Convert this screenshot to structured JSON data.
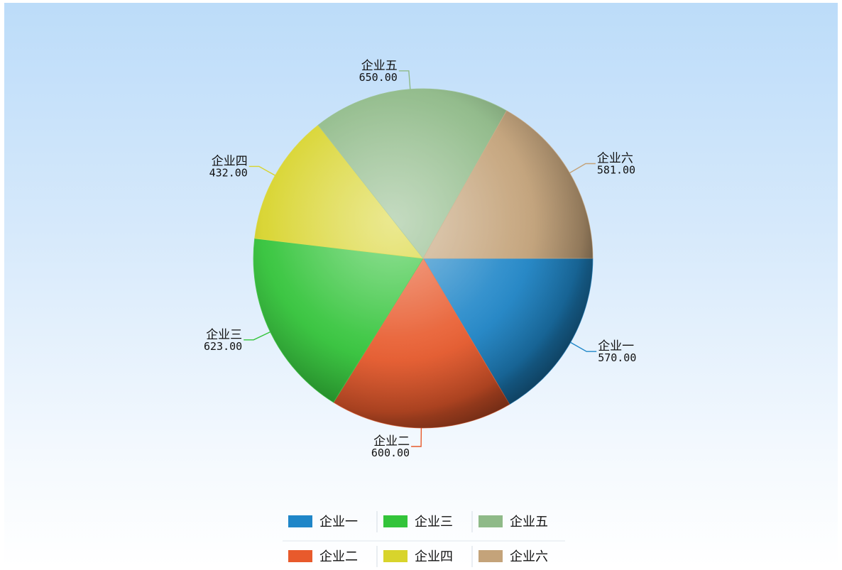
{
  "chart_data": {
    "type": "pie",
    "title": "",
    "categories": [
      "企业一",
      "企业二",
      "企业三",
      "企业四",
      "企业五",
      "企业六"
    ],
    "values": [
      570.0,
      600.0,
      623.0,
      432.0,
      650.0,
      581.0
    ],
    "value_labels": [
      "570.00",
      "600.00",
      "623.00",
      "432.00",
      "650.00",
      "581.00"
    ],
    "colors": [
      "#1f86c8",
      "#e85a2c",
      "#33c43a",
      "#d8d42c",
      "#8fba88",
      "#c4a37a"
    ],
    "start_angle_deg": 0,
    "direction": "clockwise",
    "legend_position": "bottom",
    "legend_order": [
      "企业一",
      "企业三",
      "企业五",
      "企业二",
      "企业四",
      "企业六"
    ]
  }
}
